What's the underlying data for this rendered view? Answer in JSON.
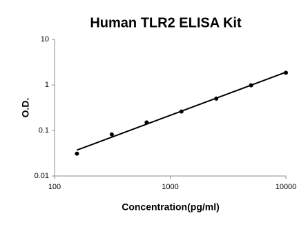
{
  "chart_data": {
    "type": "scatter",
    "title": "Human TLR2 ELISA Kit",
    "x_label": "Concentration(pg/ml)",
    "y_label": "O.D.",
    "x": [
      156.25,
      312.5,
      625,
      1250,
      2500,
      5000,
      10000
    ],
    "values": [
      0.031,
      0.082,
      0.15,
      0.26,
      0.5,
      0.98,
      1.85
    ],
    "color": "#000000",
    "fit": {
      "x": [
        156.25,
        10000
      ],
      "values": [
        0.037,
        1.9
      ],
      "color": "#000000"
    },
    "xlim": [
      100,
      10000
    ],
    "ylim": [
      0.01,
      10
    ],
    "xticks": [
      100,
      1000,
      10000
    ],
    "yticks": [
      0.01,
      0.1,
      1,
      10
    ],
    "log_x": true,
    "log_y": true,
    "grid": false
  }
}
